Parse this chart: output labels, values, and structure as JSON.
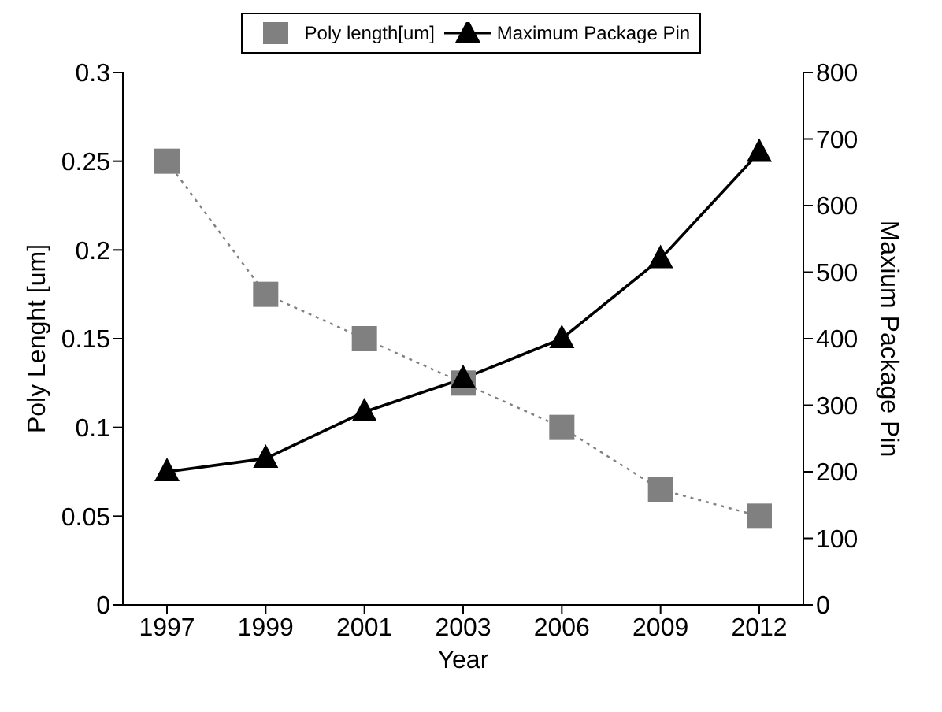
{
  "chart_data": {
    "type": "line",
    "categories": [
      "1997",
      "1999",
      "2001",
      "2003",
      "2006",
      "2009",
      "2012"
    ],
    "xlabel": "Year",
    "ylabel": "Poly Lenght [um]",
    "y2label": "Maxium Package Pin",
    "ylim": [
      0,
      0.3
    ],
    "yticks": [
      0,
      0.05,
      0.1,
      0.15,
      0.2,
      0.25,
      0.3
    ],
    "y2lim": [
      0,
      800
    ],
    "y2ticks": [
      0,
      100,
      200,
      300,
      400,
      500,
      600,
      700,
      800
    ],
    "legend": "top",
    "grid": false,
    "series": [
      {
        "name": "Poly length[um]",
        "color": "#808080",
        "marker": "square",
        "line_style": "dotted",
        "values": [
          0.25,
          0.175,
          0.15,
          0.125,
          0.1,
          0.065,
          0.05
        ]
      },
      {
        "name": "Maximum Package Pin",
        "color": "#000000",
        "marker": "triangle",
        "line_style": "solid",
        "axis": "y2",
        "values": [
          200,
          220,
          290,
          340,
          400,
          520,
          680
        ]
      }
    ]
  }
}
